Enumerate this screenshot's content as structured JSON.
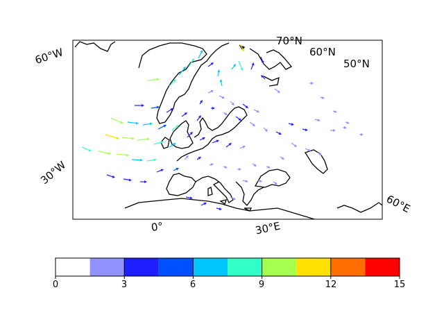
{
  "map": {
    "lat_labels": [
      "70°N",
      "60°N",
      "50°N"
    ],
    "lon_labels": [
      "60°W",
      "30°W",
      "0°",
      "30°E",
      "60°E"
    ]
  },
  "colorbar": {
    "ticks": [
      "0",
      "3",
      "6",
      "9",
      "12",
      "15"
    ],
    "bins": [
      {
        "from": 0,
        "to": 1.5,
        "color": "#ffffff"
      },
      {
        "from": 1.5,
        "to": 3,
        "color": "#9191ff"
      },
      {
        "from": 3,
        "to": 4.5,
        "color": "#1e1eff"
      },
      {
        "from": 4.5,
        "to": 6,
        "color": "#0050ff"
      },
      {
        "from": 6,
        "to": 7.5,
        "color": "#00c8ff"
      },
      {
        "from": 7.5,
        "to": 9,
        "color": "#32ffc8"
      },
      {
        "from": 9,
        "to": 10.5,
        "color": "#a5ff50"
      },
      {
        "from": 10.5,
        "to": 12,
        "color": "#ffe100"
      },
      {
        "from": 12,
        "to": 13.5,
        "color": "#ff6e00"
      },
      {
        "from": 13.5,
        "to": 15,
        "color": "#ff0000"
      }
    ]
  }
}
